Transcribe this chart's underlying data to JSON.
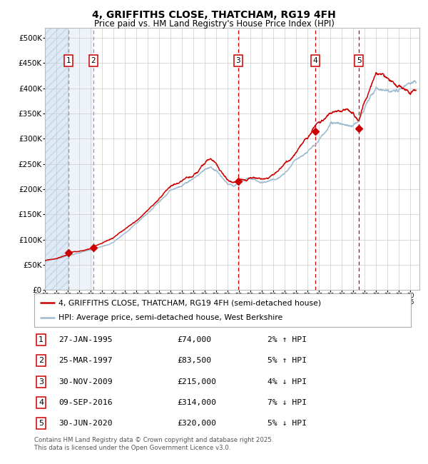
{
  "title": "4, GRIFFITHS CLOSE, THATCHAM, RG19 4FH",
  "subtitle": "Price paid vs. HM Land Registry's House Price Index (HPI)",
  "ytick_vals": [
    0,
    50000,
    100000,
    150000,
    200000,
    250000,
    300000,
    350000,
    400000,
    450000,
    500000
  ],
  "ylim": [
    0,
    520000
  ],
  "xlim_start": 1993.0,
  "xlim_end": 2025.8,
  "transactions": [
    {
      "label": "1",
      "date": "27-JAN-1995",
      "price": 74000,
      "pct": "2%",
      "dir": "↑",
      "year": 1995.07
    },
    {
      "label": "2",
      "date": "25-MAR-1997",
      "price": 83500,
      "pct": "5%",
      "dir": "↑",
      "year": 1997.23
    },
    {
      "label": "3",
      "date": "30-NOV-2009",
      "price": 215000,
      "pct": "4%",
      "dir": "↓",
      "year": 2009.92
    },
    {
      "label": "4",
      "date": "09-SEP-2016",
      "price": 314000,
      "pct": "7%",
      "dir": "↓",
      "year": 2016.69
    },
    {
      "label": "5",
      "date": "30-JUN-2020",
      "price": 320000,
      "pct": "5%",
      "dir": "↓",
      "year": 2020.5
    }
  ],
  "legend_line1": "4, GRIFFITHS CLOSE, THATCHAM, RG19 4FH (semi-detached house)",
  "legend_line2": "HPI: Average price, semi-detached house, West Berkshire",
  "line_color_red": "#cc0000",
  "line_color_blue": "#a0bcd0",
  "shade_color": "#dce8f3",
  "footnote": "Contains HM Land Registry data © Crown copyright and database right 2025.\nThis data is licensed under the Open Government Licence v3.0.",
  "grid_color": "#cccccc",
  "background_color": "#ffffff",
  "key_years_hpi": [
    1993.0,
    1994.0,
    1995.0,
    1996.0,
    1997.0,
    1998.0,
    1999.0,
    2000.0,
    2001.0,
    2002.0,
    2003.0,
    2004.0,
    2005.0,
    2006.0,
    2007.0,
    2007.5,
    2008.0,
    2008.5,
    2009.0,
    2009.5,
    2010.0,
    2010.5,
    2011.0,
    2011.5,
    2012.0,
    2012.5,
    2013.0,
    2013.5,
    2014.0,
    2014.5,
    2015.0,
    2015.5,
    2016.0,
    2016.5,
    2017.0,
    2017.5,
    2018.0,
    2018.5,
    2019.0,
    2019.5,
    2020.0,
    2020.5,
    2021.0,
    2021.5,
    2022.0,
    2022.5,
    2023.0,
    2023.5,
    2024.0,
    2024.5,
    2025.0,
    2025.5
  ],
  "key_vals_hpi": [
    58000,
    62000,
    68000,
    74000,
    80000,
    88000,
    98000,
    115000,
    133000,
    155000,
    178000,
    200000,
    210000,
    225000,
    243000,
    248000,
    238000,
    225000,
    210000,
    205000,
    213000,
    218000,
    220000,
    217000,
    215000,
    216000,
    220000,
    228000,
    238000,
    248000,
    262000,
    275000,
    288000,
    302000,
    318000,
    328000,
    338000,
    342000,
    340000,
    338000,
    340000,
    348000,
    375000,
    398000,
    415000,
    412000,
    405000,
    400000,
    402000,
    406000,
    410000,
    413000
  ],
  "key_years_red": [
    1993.0,
    1994.0,
    1995.0,
    1995.07,
    1996.0,
    1997.0,
    1997.23,
    1998.0,
    1999.0,
    2000.0,
    2001.0,
    2002.0,
    2003.0,
    2004.0,
    2005.0,
    2006.0,
    2007.0,
    2007.5,
    2008.0,
    2008.5,
    2009.0,
    2009.5,
    2009.92,
    2010.0,
    2010.5,
    2011.0,
    2011.5,
    2012.0,
    2012.5,
    2013.0,
    2013.5,
    2014.0,
    2014.5,
    2015.0,
    2015.5,
    2016.0,
    2016.5,
    2016.69,
    2017.0,
    2017.5,
    2018.0,
    2018.5,
    2019.0,
    2019.5,
    2020.0,
    2020.5,
    2020.5,
    2021.0,
    2021.5,
    2022.0,
    2022.5,
    2023.0,
    2023.5,
    2024.0,
    2024.5,
    2025.0,
    2025.5
  ],
  "key_vals_red": [
    58000,
    62000,
    70000,
    74000,
    76000,
    80000,
    83500,
    90000,
    100000,
    118000,
    136000,
    158000,
    181000,
    202000,
    213000,
    228000,
    248000,
    255000,
    245000,
    228000,
    212000,
    208000,
    215000,
    218000,
    220000,
    222000,
    220000,
    218000,
    218000,
    222000,
    230000,
    242000,
    252000,
    265000,
    278000,
    292000,
    308000,
    314000,
    322000,
    330000,
    336000,
    338000,
    336000,
    334000,
    332000,
    320000,
    320000,
    355000,
    378000,
    400000,
    395000,
    388000,
    380000,
    372000,
    368000,
    365000,
    370000
  ]
}
